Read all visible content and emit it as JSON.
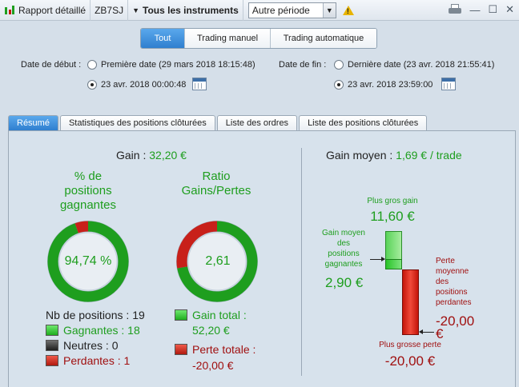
{
  "toolbar": {
    "report_label": "Rapport détaillé",
    "account": "ZB7SJ",
    "instruments": "Tous les instruments",
    "period_selected": "Autre période",
    "instruments_icon": "dropdown-triangle-icon",
    "warning_icon": "warning-icon",
    "print_icon": "printer-icon"
  },
  "window_controls": {
    "minimize": "—",
    "maximize": "☐",
    "close": "✕"
  },
  "segments": [
    "Tout",
    "Trading manuel",
    "Trading automatique"
  ],
  "dates": {
    "start_label": "Date de début :",
    "start_option1": "Première date (29 mars 2018 18:15:48)",
    "start_option2": "23 avr. 2018 00:00:48",
    "end_label": "Date de fin :",
    "end_option1": "Dernière date (23 avr. 2018 21:55:41)",
    "end_option2": "23 avr. 2018 23:59:00"
  },
  "tabs": [
    "Résumé",
    "Statistiques des positions clôturées",
    "Liste des ordres",
    "Liste des positions clôturées"
  ],
  "summary": {
    "gain_label": "Gain :",
    "gain_value": "32,20 €",
    "pct_title": "% de\npositions\ngagnantes",
    "pct_value": "94,74 %",
    "ratio_title": "Ratio\nGains/Pertes",
    "ratio_value": "2,61",
    "nb_positions_label": "Nb de positions :",
    "nb_positions_value": "19",
    "winning_label": "Gagnantes : 18",
    "neutral_label": "Neutres : 0",
    "losing_label": "Perdantes : 1",
    "total_gain_label": "Gain total :",
    "total_gain_value": "52,20 €",
    "total_loss_label": "Perte totale :",
    "total_loss_value": "-20,00 €"
  },
  "averages": {
    "avg_gain_label": "Gain moyen :",
    "avg_gain_value": "1,69 € / trade",
    "max_gain_label": "Plus gros gain",
    "max_gain_value": "11,60 €",
    "avg_win_label": "Gain moyen\ndes\npositions\ngagnantes",
    "avg_win_value": "2,90 €",
    "avg_loss_label": "Perte\nmoyenne\ndes\npositions\nperdantes",
    "avg_loss_value": "-20,00\n€",
    "max_loss_label": "Plus grosse perte",
    "max_loss_value": "-20,00 €"
  },
  "colors": {
    "gain": "#1e9e1e",
    "loss": "#a01010",
    "accent": "#2f7fcf"
  },
  "chart_data": [
    {
      "type": "pie",
      "categories": [
        "Gagnantes",
        "Neutres",
        "Perdantes"
      ],
      "values": [
        18,
        0,
        1
      ]
    },
    {
      "type": "pie",
      "categories": [
        "Gain total",
        "Perte totale"
      ],
      "values": [
        52.2,
        20.0
      ]
    }
  ]
}
